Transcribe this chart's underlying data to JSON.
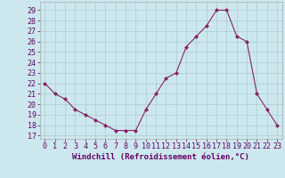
{
  "x": [
    0,
    1,
    2,
    3,
    4,
    5,
    6,
    7,
    8,
    9,
    10,
    11,
    12,
    13,
    14,
    15,
    16,
    17,
    18,
    19,
    20,
    21,
    22,
    23
  ],
  "y": [
    22,
    21,
    20.5,
    19.5,
    19,
    18.5,
    18,
    17.5,
    17.5,
    17.5,
    19.5,
    21,
    22.5,
    23,
    25.5,
    26.5,
    27.5,
    29,
    29,
    26.5,
    26,
    21,
    19.5,
    18
  ],
  "line_color": "#882266",
  "marker": "D",
  "marker_size": 2.0,
  "bg_color": "#cce8ee",
  "grid_color": "#aacccc",
  "xlabel": "Windchill (Refroidissement éolien,°C)",
  "ylabel_ticks": [
    17,
    18,
    19,
    20,
    21,
    22,
    23,
    24,
    25,
    26,
    27,
    28,
    29
  ],
  "xlim": [
    -0.5,
    23.5
  ],
  "ylim": [
    16.7,
    29.8
  ],
  "xticks": [
    0,
    1,
    2,
    3,
    4,
    5,
    6,
    7,
    8,
    9,
    10,
    11,
    12,
    13,
    14,
    15,
    16,
    17,
    18,
    19,
    20,
    21,
    22,
    23
  ],
  "tick_fontsize": 6.0,
  "xlabel_fontsize": 6.5
}
